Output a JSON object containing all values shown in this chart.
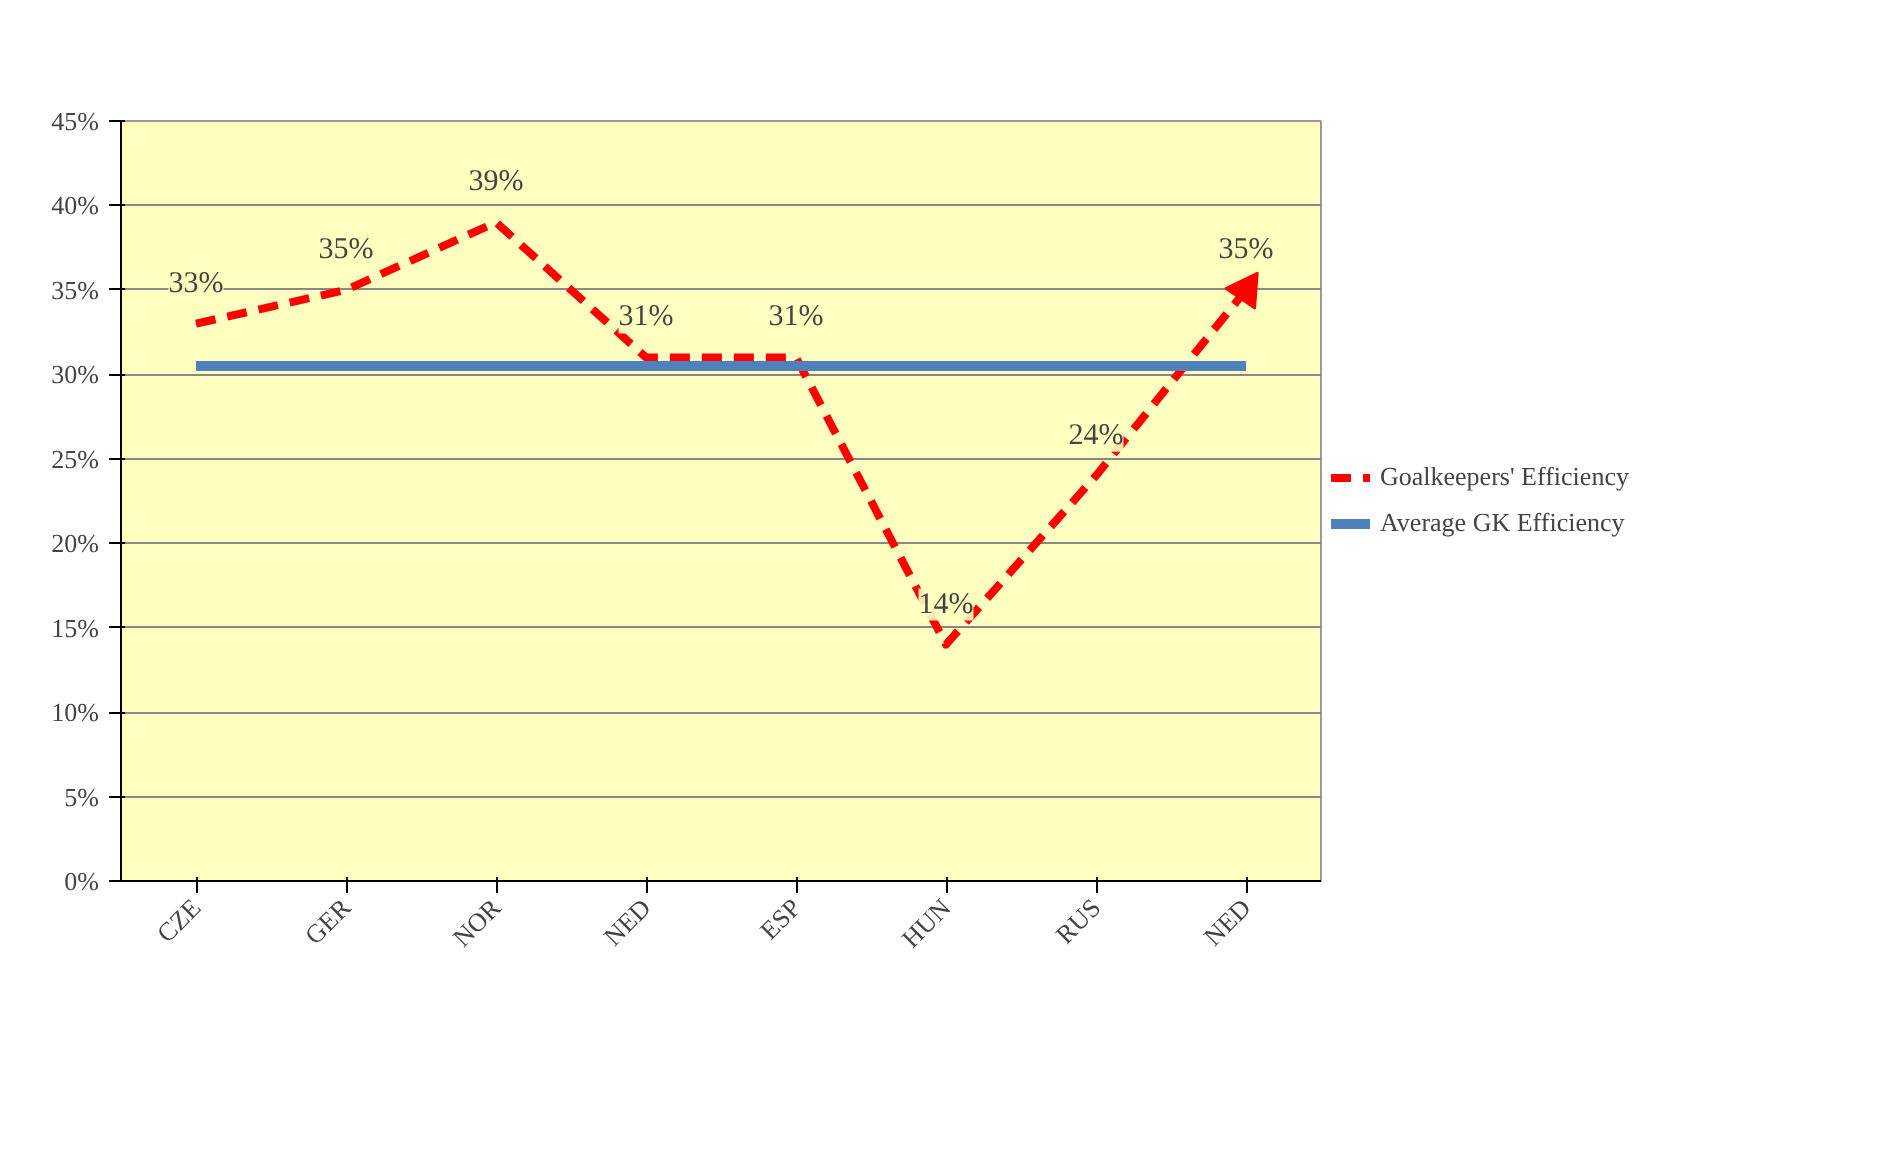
{
  "chart_data": {
    "type": "line",
    "categories": [
      "CZE",
      "GER",
      "NOR",
      "NED",
      "ESP",
      "HUN",
      "RUS",
      "NED"
    ],
    "ylim": [
      0,
      45
    ],
    "yticks": [
      {
        "value": 0,
        "label": "0%"
      },
      {
        "value": 5,
        "label": "5%"
      },
      {
        "value": 10,
        "label": "10%"
      },
      {
        "value": 15,
        "label": "15%"
      },
      {
        "value": 20,
        "label": "20%"
      },
      {
        "value": 25,
        "label": "25%"
      },
      {
        "value": 30,
        "label": "30%"
      },
      {
        "value": 35,
        "label": "35%"
      },
      {
        "value": 40,
        "label": "40%"
      },
      {
        "value": 45,
        "label": "45%"
      }
    ],
    "grid": "y",
    "legend": "right",
    "series": [
      {
        "name": "Goalkeepers' Efficiency",
        "color": "#ff0000",
        "line_style": "dashed",
        "values": [
          33,
          35,
          39,
          31,
          31,
          14,
          24,
          35
        ],
        "value_labels": [
          "33%",
          "35%",
          "39%",
          "31%",
          "31%",
          "14%",
          "24%",
          "35%"
        ]
      },
      {
        "name": "Average GK Efficiency",
        "color": "#4f81bd",
        "line_style": "solid",
        "values": [
          30.5,
          30.5,
          30.5,
          30.5,
          30.5,
          30.5,
          30.5,
          30.5
        ]
      }
    ]
  }
}
